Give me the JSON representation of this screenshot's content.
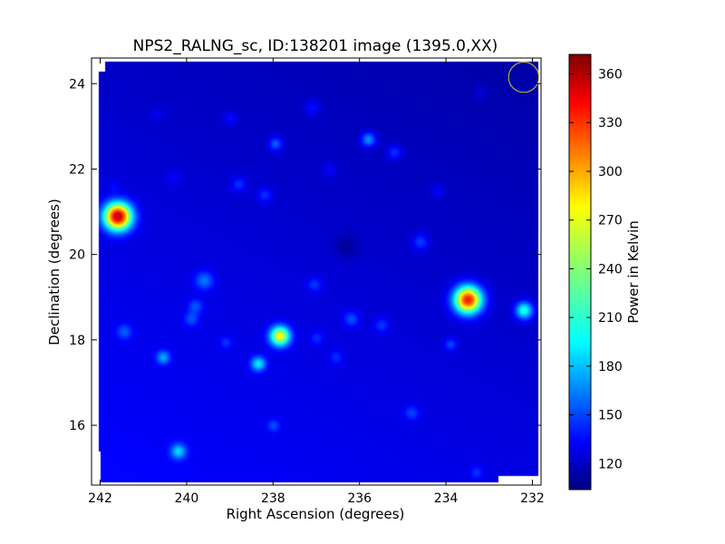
{
  "chart_data": {
    "type": "heatmap",
    "title": "NPS2_RALNG_sc, ID:138201 image (1395.0,XX)",
    "xlabel": "Right Ascension (degrees)",
    "ylabel": "Declination (degrees)",
    "xlim": [
      242.2,
      231.8
    ],
    "ylim": [
      14.6,
      24.6
    ],
    "x_ticks": [
      242,
      240,
      238,
      236,
      234,
      232
    ],
    "y_ticks": [
      16,
      18,
      20,
      22,
      24
    ],
    "colorbar": {
      "label": "Power in Kelvin",
      "range": [
        104,
        372
      ],
      "ticks": [
        120,
        150,
        180,
        210,
        240,
        270,
        300,
        330,
        360
      ],
      "colormap": "jet"
    },
    "background_level_kelvin": 120,
    "sources": [
      {
        "ra": 241.6,
        "dec": 20.9,
        "peak": 350,
        "size": 0.22
      },
      {
        "ra": 233.5,
        "dec": 18.95,
        "peak": 330,
        "size": 0.22
      },
      {
        "ra": 237.85,
        "dec": 18.1,
        "peak": 265,
        "size": 0.16
      },
      {
        "ra": 232.2,
        "dec": 18.7,
        "peak": 210,
        "size": 0.14
      },
      {
        "ra": 238.35,
        "dec": 17.45,
        "peak": 190,
        "size": 0.12
      },
      {
        "ra": 240.2,
        "dec": 15.4,
        "peak": 180,
        "size": 0.12
      },
      {
        "ra": 240.55,
        "dec": 17.6,
        "peak": 170,
        "size": 0.11
      },
      {
        "ra": 235.8,
        "dec": 22.7,
        "peak": 175,
        "size": 0.12
      },
      {
        "ra": 237.95,
        "dec": 22.6,
        "peak": 160,
        "size": 0.11
      },
      {
        "ra": 239.6,
        "dec": 19.4,
        "peak": 160,
        "size": 0.15
      },
      {
        "ra": 239.8,
        "dec": 18.8,
        "peak": 150,
        "size": 0.12
      },
      {
        "ra": 241.45,
        "dec": 18.2,
        "peak": 150,
        "size": 0.12
      },
      {
        "ra": 239.9,
        "dec": 18.5,
        "peak": 148,
        "size": 0.12
      },
      {
        "ra": 236.2,
        "dec": 18.5,
        "peak": 150,
        "size": 0.13
      },
      {
        "ra": 235.5,
        "dec": 18.35,
        "peak": 145,
        "size": 0.12
      },
      {
        "ra": 234.6,
        "dec": 20.3,
        "peak": 150,
        "size": 0.13
      },
      {
        "ra": 235.2,
        "dec": 22.4,
        "peak": 150,
        "size": 0.12
      },
      {
        "ra": 238.8,
        "dec": 21.65,
        "peak": 145,
        "size": 0.12
      },
      {
        "ra": 238.2,
        "dec": 21.4,
        "peak": 145,
        "size": 0.12
      },
      {
        "ra": 237.05,
        "dec": 19.3,
        "peak": 145,
        "size": 0.12
      },
      {
        "ra": 237.0,
        "dec": 18.05,
        "peak": 140,
        "size": 0.11
      },
      {
        "ra": 236.55,
        "dec": 17.6,
        "peak": 140,
        "size": 0.11
      },
      {
        "ra": 233.9,
        "dec": 17.9,
        "peak": 150,
        "size": 0.1
      },
      {
        "ra": 234.8,
        "dec": 16.3,
        "peak": 145,
        "size": 0.12
      },
      {
        "ra": 238.0,
        "dec": 16.0,
        "peak": 145,
        "size": 0.1
      },
      {
        "ra": 233.3,
        "dec": 14.9,
        "peak": 140,
        "size": 0.1
      },
      {
        "ra": 239.1,
        "dec": 17.95,
        "peak": 140,
        "size": 0.1
      },
      {
        "ra": 239.0,
        "dec": 23.2,
        "peak": 138,
        "size": 0.11
      },
      {
        "ra": 237.1,
        "dec": 23.45,
        "peak": 140,
        "size": 0.13
      },
      {
        "ra": 234.2,
        "dec": 21.5,
        "peak": 135,
        "size": 0.12
      },
      {
        "ra": 236.7,
        "dec": 22.0,
        "peak": 135,
        "size": 0.11
      },
      {
        "ra": 233.2,
        "dec": 23.8,
        "peak": 132,
        "size": 0.11
      },
      {
        "ra": 241.7,
        "dec": 21.6,
        "peak": 132,
        "size": 0.1
      },
      {
        "ra": 240.3,
        "dec": 21.8,
        "peak": 132,
        "size": 0.12
      },
      {
        "ra": 240.7,
        "dec": 23.3,
        "peak": 130,
        "size": 0.1
      },
      {
        "ra": 236.3,
        "dec": 20.2,
        "peak": 105,
        "size": 0.18
      }
    ],
    "beam_marker": {
      "ra": 232.2,
      "dec": 24.15,
      "radius_deg": 0.35,
      "color": "#c8c820"
    }
  }
}
